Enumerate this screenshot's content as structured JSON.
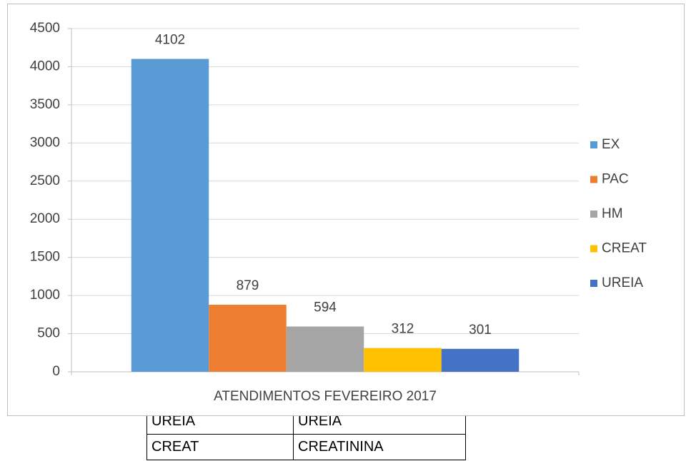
{
  "chart_data": {
    "type": "bar",
    "categories": [
      "ATENDIMENTOS FEVEREIRO 2017"
    ],
    "series": [
      {
        "name": "EX",
        "color": "#5b9bd5",
        "values": [
          4102
        ]
      },
      {
        "name": "PAC",
        "color": "#ed7d31",
        "values": [
          879
        ]
      },
      {
        "name": "HM",
        "color": "#a5a5a5",
        "values": [
          594
        ]
      },
      {
        "name": "CREAT",
        "color": "#ffc000",
        "values": [
          312
        ]
      },
      {
        "name": "UREIA",
        "color": "#4472c4",
        "values": [
          301
        ]
      }
    ],
    "ylim": [
      0,
      4500
    ],
    "yticks": [
      0,
      500,
      1000,
      1500,
      2000,
      2500,
      3000,
      3500,
      4000,
      4500
    ],
    "grid": true,
    "legend": "right",
    "data_labels": true
  },
  "table": {
    "rows": [
      [
        "UREIA",
        "UREIA"
      ],
      [
        "CREAT",
        "CREATININA"
      ]
    ]
  }
}
